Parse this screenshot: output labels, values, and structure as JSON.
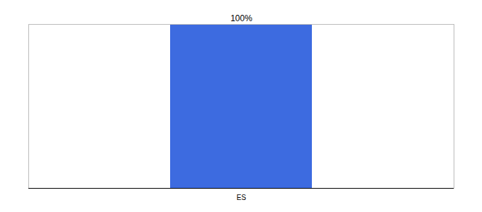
{
  "chart_data": {
    "type": "bar",
    "categories": [
      "ES"
    ],
    "values": [
      100
    ],
    "color": "#3d6be0",
    "ylim": [
      0,
      100
    ],
    "yticks": [],
    "grid": false,
    "data_labels": true,
    "value_labels": [
      "100%"
    ],
    "tick_labels": "x"
  }
}
